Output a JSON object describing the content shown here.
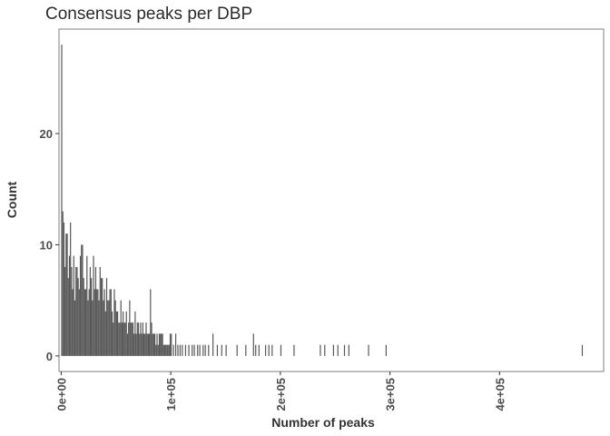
{
  "chart_data": {
    "type": "bar",
    "subtype": "histogram",
    "title": "Consensus peaks per DBP",
    "xlabel": "Number of peaks",
    "ylabel": "Count",
    "xlim": [
      -2000,
      495000
    ],
    "ylim": [
      -1.4,
      29.4
    ],
    "bin_width": 1000,
    "x_ticks": [
      {
        "value": 0,
        "label": "0e+00"
      },
      {
        "value": 100000,
        "label": "1e+05"
      },
      {
        "value": 200000,
        "label": "2e+05"
      },
      {
        "value": 300000,
        "label": "3e+05"
      },
      {
        "value": 400000,
        "label": "4e+05"
      }
    ],
    "y_ticks": [
      {
        "value": 0,
        "label": "0"
      },
      {
        "value": 10,
        "label": "10"
      },
      {
        "value": 20,
        "label": "20"
      }
    ],
    "grid": false,
    "bar_color": "#595959",
    "bins_x": [
      0,
      1000,
      2000,
      3000,
      4000,
      5000,
      6000,
      7000,
      8000,
      9000,
      10000,
      11000,
      12000,
      13000,
      14000,
      15000,
      16000,
      17000,
      18000,
      19000,
      20000,
      21000,
      22000,
      23000,
      24000,
      25000,
      26000,
      27000,
      28000,
      29000,
      30000,
      31000,
      32000,
      33000,
      34000,
      35000,
      36000,
      37000,
      38000,
      39000,
      40000,
      41000,
      42000,
      43000,
      44000,
      45000,
      46000,
      47000,
      48000,
      49000,
      50000,
      51000,
      52000,
      53000,
      54000,
      55000,
      56000,
      57000,
      58000,
      59000,
      60000,
      61000,
      62000,
      63000,
      64000,
      65000,
      66000,
      67000,
      68000,
      69000,
      70000,
      71000,
      72000,
      73000,
      74000,
      75000,
      76000,
      77000,
      78000,
      79000,
      80000,
      81000,
      82000,
      83000,
      84000,
      85000,
      86000,
      87000,
      88000,
      89000,
      90000,
      91000,
      92000,
      93000,
      94000,
      95000,
      96000,
      97000,
      98000,
      99000,
      100000,
      102000,
      104000,
      106000,
      108000,
      110000,
      113000,
      116000,
      119000,
      121000,
      124000,
      126000,
      129000,
      131000,
      134000,
      138000,
      142000,
      146000,
      150000,
      160000,
      168000,
      175000,
      177000,
      180000,
      186000,
      189000,
      192000,
      200000,
      212000,
      236000,
      240000,
      248000,
      252000,
      258000,
      262000,
      280000,
      296000,
      475000
    ],
    "bins_y": [
      28,
      13,
      12,
      8,
      11,
      11,
      7,
      9,
      12,
      8,
      6,
      9,
      5,
      8,
      8,
      7,
      6,
      9,
      10,
      10,
      7,
      6,
      6,
      9,
      5,
      6,
      8,
      7,
      5,
      9,
      6,
      8,
      6,
      6,
      5,
      8,
      7,
      7,
      5,
      6,
      4,
      7,
      5,
      5,
      6,
      6,
      4,
      3,
      6,
      5,
      4,
      4,
      3,
      3,
      5,
      3,
      4,
      3,
      3,
      4,
      2,
      3,
      5,
      3,
      3,
      3,
      2,
      4,
      2,
      3,
      3,
      2,
      3,
      2,
      3,
      2,
      2,
      3,
      2,
      2,
      2,
      6,
      3,
      2,
      2,
      2,
      1,
      2,
      1,
      2,
      2,
      2,
      2,
      1,
      1,
      1,
      1,
      1,
      1,
      2,
      2,
      1,
      2,
      1,
      1,
      1,
      1,
      1,
      1,
      1,
      1,
      1,
      1,
      1,
      1,
      2,
      1,
      1,
      1,
      1,
      1,
      2,
      1,
      1,
      1,
      1,
      1,
      1,
      1,
      1,
      1,
      1,
      1,
      1,
      1,
      1,
      1,
      1
    ]
  }
}
